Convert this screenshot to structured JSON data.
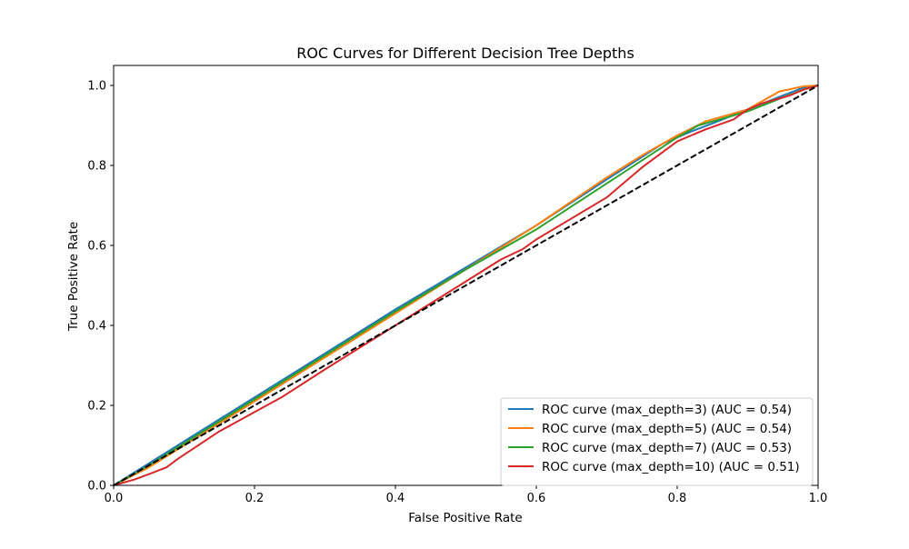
{
  "chart_data": {
    "type": "line",
    "title": "ROC Curves for Different Decision Tree Depths",
    "xlabel": "False Positive Rate",
    "ylabel": "True Positive Rate",
    "xlim": [
      0.0,
      1.0
    ],
    "ylim": [
      0.0,
      1.05
    ],
    "xticks": [
      "0.0",
      "0.2",
      "0.4",
      "0.6",
      "0.8",
      "1.0"
    ],
    "yticks": [
      "0.0",
      "0.2",
      "0.4",
      "0.6",
      "0.8",
      "1.0"
    ],
    "grid": false,
    "legend_position": "lower-right",
    "series": [
      {
        "name": "ROC curve (max_depth=3) (AUC = 0.54)",
        "color": "#1f77b4",
        "x": [
          0,
          0.05,
          0.1,
          0.2,
          0.3,
          0.4,
          0.5,
          0.6,
          0.7,
          0.78,
          0.82,
          0.85,
          0.9,
          0.95,
          0.98,
          1.0
        ],
        "y": [
          0,
          0.055,
          0.11,
          0.22,
          0.33,
          0.44,
          0.545,
          0.65,
          0.765,
          0.855,
          0.885,
          0.905,
          0.94,
          0.975,
          0.995,
          1.0
        ]
      },
      {
        "name": "ROC curve (max_depth=5) (AUC = 0.54)",
        "color": "#ff7f0e",
        "x": [
          0,
          0.05,
          0.1,
          0.2,
          0.3,
          0.4,
          0.5,
          0.6,
          0.7,
          0.75,
          0.8,
          0.84,
          0.9,
          0.945,
          0.98,
          1.0
        ],
        "y": [
          0,
          0.045,
          0.1,
          0.21,
          0.32,
          0.43,
          0.54,
          0.65,
          0.77,
          0.825,
          0.875,
          0.91,
          0.94,
          0.985,
          0.998,
          1.0
        ]
      },
      {
        "name": "ROC curve (max_depth=7) (AUC = 0.53)",
        "color": "#2ca02c",
        "x": [
          0,
          0.05,
          0.1,
          0.2,
          0.3,
          0.4,
          0.5,
          0.58,
          0.6,
          0.7,
          0.8,
          0.83,
          0.9,
          0.95,
          0.98,
          1.0
        ],
        "y": [
          0,
          0.05,
          0.105,
          0.215,
          0.325,
          0.435,
          0.54,
          0.62,
          0.64,
          0.755,
          0.87,
          0.9,
          0.935,
          0.97,
          0.99,
          1.0
        ]
      },
      {
        "name": "ROC curve (max_depth=10) (AUC = 0.51)",
        "color": "#d62728",
        "x": [
          0,
          0.03,
          0.05,
          0.075,
          0.09,
          0.15,
          0.24,
          0.3,
          0.4,
          0.5,
          0.55,
          0.58,
          0.6,
          0.7,
          0.71,
          0.75,
          0.8,
          0.82,
          0.84,
          0.88,
          0.9,
          0.92,
          0.96,
          0.98,
          1.0
        ],
        "y": [
          0,
          0.015,
          0.028,
          0.045,
          0.065,
          0.135,
          0.222,
          0.29,
          0.4,
          0.51,
          0.565,
          0.59,
          0.615,
          0.72,
          0.735,
          0.795,
          0.86,
          0.875,
          0.89,
          0.915,
          0.94,
          0.955,
          0.975,
          0.99,
          1.0
        ]
      }
    ],
    "reference_line": {
      "x": [
        0,
        1
      ],
      "y": [
        0,
        1
      ],
      "color": "#000000",
      "dashed": true
    }
  }
}
